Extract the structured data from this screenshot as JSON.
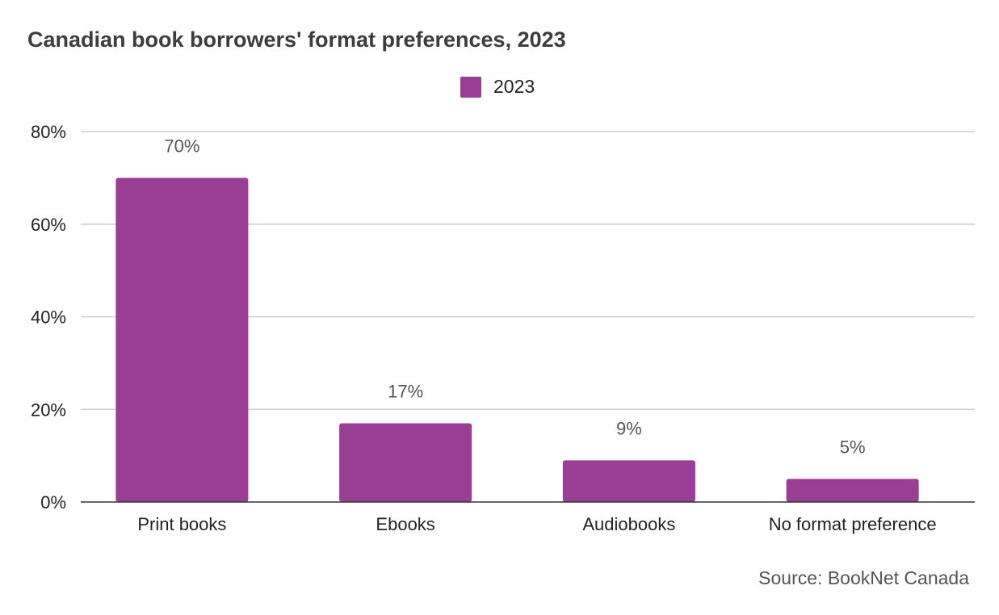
{
  "colors": {
    "bar": "#9a3d95",
    "grid": "#cccccc",
    "axis": "#333333"
  },
  "chart_data": {
    "type": "bar",
    "title": "Canadian book borrowers' format preferences, 2023",
    "categories": [
      "Print books",
      "Ebooks",
      "Audiobooks",
      "No format preference"
    ],
    "series": [
      {
        "name": "2023",
        "values": [
          70,
          17,
          9,
          5
        ]
      }
    ],
    "data_labels": [
      "70%",
      "17%",
      "9%",
      "5%"
    ],
    "y_ticks": [
      0,
      20,
      40,
      60,
      80
    ],
    "y_tick_labels": [
      "0%",
      "20%",
      "40%",
      "60%",
      "80%"
    ],
    "ylim": [
      0,
      80
    ],
    "grid": true,
    "legend_position": "top-center",
    "xlabel": "",
    "ylabel": ""
  },
  "source": "Source: BookNet Canada"
}
